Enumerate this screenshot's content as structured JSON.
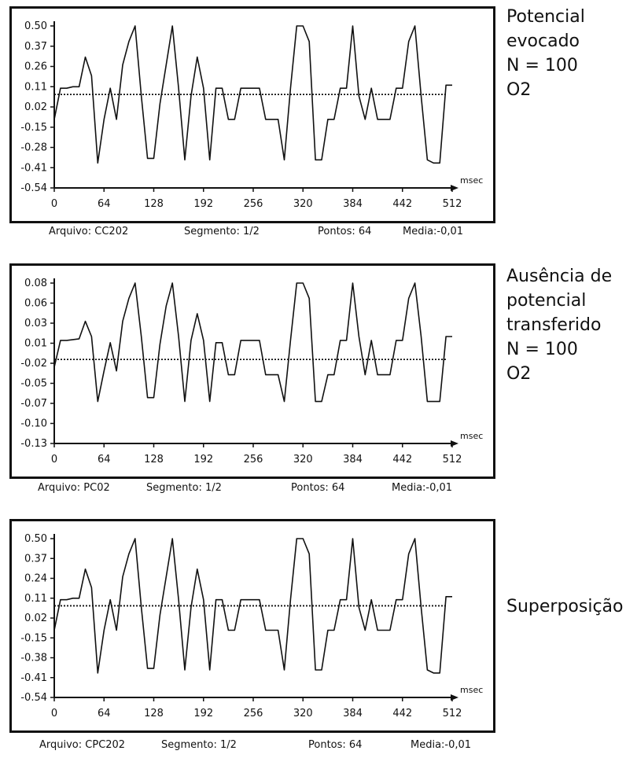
{
  "chart_data": [
    {
      "type": "line",
      "title": "Potencial evocado",
      "caption_lines": [
        "Potencial",
        "evocado",
        "N = 100",
        "O2"
      ],
      "x": [
        0,
        8,
        16,
        24,
        32,
        40,
        48,
        56,
        64,
        72,
        80,
        88,
        96,
        104,
        112,
        120,
        128,
        136,
        144,
        152,
        160,
        168,
        176,
        184,
        192,
        200,
        208,
        216,
        224,
        232,
        240,
        248,
        256,
        264,
        272,
        280,
        288,
        296,
        304,
        312,
        320,
        328,
        336,
        344,
        352,
        360,
        368,
        376,
        384,
        392,
        400,
        408,
        416,
        424,
        432,
        440,
        448,
        456,
        464,
        472,
        480,
        488,
        496,
        504,
        512
      ],
      "y_ticks": [
        "0.50",
        "0.37",
        "0.26",
        "0.11",
        "0.02",
        "-0.15",
        "-0.28",
        "-0.41",
        "-0.54"
      ],
      "x_ticks": [
        "0",
        "64",
        "128",
        "192",
        "256",
        "320",
        "384",
        "442",
        "512"
      ],
      "xunit": "msec",
      "baseline": 0.06,
      "ylim": [
        -0.54,
        0.5
      ],
      "series": [
        {
          "values": [
            -0.1,
            0.1,
            0.1,
            0.11,
            0.11,
            0.3,
            0.18,
            -0.38,
            -0.1,
            0.1,
            -0.1,
            0.25,
            0.4,
            0.5,
            0.05,
            -0.35,
            -0.35,
            0.0,
            0.25,
            0.5,
            0.1,
            -0.36,
            0.05,
            0.3,
            0.1,
            -0.36,
            0.1,
            0.1,
            -0.1,
            -0.1,
            0.1,
            0.1,
            0.1,
            0.1,
            -0.1,
            -0.1,
            -0.1,
            -0.36,
            0.1,
            0.5,
            0.5,
            0.4,
            -0.36,
            -0.36,
            -0.1,
            -0.1,
            0.1,
            0.1,
            0.5,
            0.05,
            -0.1,
            0.1,
            -0.1,
            -0.1,
            -0.1,
            0.1,
            0.1,
            0.4,
            0.5,
            0.05,
            -0.36,
            -0.38,
            -0.38,
            0.12,
            0.12
          ]
        }
      ],
      "footer": {
        "file": "Arquivo: CC202",
        "segment": "Segmento: 1/2",
        "points": "Pontos: 64",
        "mean": "Media:-0,01"
      }
    },
    {
      "type": "line",
      "title": "Ausência de potencial transferido",
      "caption_lines": [
        "Ausência de",
        "potencial",
        "transferido",
        "N = 100",
        "O2"
      ],
      "x": [
        0,
        8,
        16,
        24,
        32,
        40,
        48,
        56,
        64,
        72,
        80,
        88,
        96,
        104,
        112,
        120,
        128,
        136,
        144,
        152,
        160,
        168,
        176,
        184,
        192,
        200,
        208,
        216,
        224,
        232,
        240,
        248,
        256,
        264,
        272,
        280,
        288,
        296,
        304,
        312,
        320,
        328,
        336,
        344,
        352,
        360,
        368,
        376,
        384,
        392,
        400,
        408,
        416,
        424,
        432,
        440,
        448,
        456,
        464,
        472,
        480,
        488,
        496,
        504,
        512
      ],
      "y_ticks": [
        "0.08",
        "0.06",
        "0.03",
        "0.01",
        "-0.02",
        "-0.05",
        "-0.07",
        "-0.10",
        "-0.13"
      ],
      "x_ticks": [
        "0",
        "64",
        "128",
        "192",
        "256",
        "320",
        "384",
        "442",
        "512"
      ],
      "xunit": "msec",
      "baseline": -0.02,
      "ylim": [
        -0.13,
        0.08
      ],
      "series": [
        {
          "values": [
            -0.03,
            0.005,
            0.005,
            0.006,
            0.007,
            0.03,
            0.01,
            -0.075,
            -0.035,
            0.002,
            -0.035,
            0.03,
            0.06,
            0.08,
            0.01,
            -0.07,
            -0.07,
            0.0,
            0.05,
            0.08,
            0.01,
            -0.075,
            0.005,
            0.04,
            0.005,
            -0.075,
            0.002,
            0.002,
            -0.04,
            -0.04,
            0.005,
            0.005,
            0.005,
            0.005,
            -0.04,
            -0.04,
            -0.04,
            -0.075,
            0.005,
            0.08,
            0.08,
            0.06,
            -0.075,
            -0.075,
            -0.04,
            -0.04,
            0.005,
            0.005,
            0.08,
            0.01,
            -0.04,
            0.005,
            -0.04,
            -0.04,
            -0.04,
            0.005,
            0.005,
            0.06,
            0.08,
            0.01,
            -0.075,
            -0.075,
            -0.075,
            0.01,
            0.01
          ]
        }
      ],
      "footer": {
        "file": "Arquivo: PC02",
        "segment": "Segmento: 1/2",
        "points": "Pontos: 64",
        "mean": "Media:-0,01"
      }
    },
    {
      "type": "line",
      "title": "Superposição",
      "caption_lines": [
        "Superposição"
      ],
      "x": [
        0,
        8,
        16,
        24,
        32,
        40,
        48,
        56,
        64,
        72,
        80,
        88,
        96,
        104,
        112,
        120,
        128,
        136,
        144,
        152,
        160,
        168,
        176,
        184,
        192,
        200,
        208,
        216,
        224,
        232,
        240,
        248,
        256,
        264,
        272,
        280,
        288,
        296,
        304,
        312,
        320,
        328,
        336,
        344,
        352,
        360,
        368,
        376,
        384,
        392,
        400,
        408,
        416,
        424,
        432,
        440,
        448,
        456,
        464,
        472,
        480,
        488,
        496,
        504,
        512
      ],
      "y_ticks": [
        "0.50",
        "0.37",
        "0.24",
        "0.11",
        "0.02",
        "-0.15",
        "-0.38",
        "-0.41",
        "-0.54"
      ],
      "x_ticks": [
        "0",
        "64",
        "128",
        "192",
        "256",
        "320",
        "384",
        "442",
        "512"
      ],
      "xunit": "msec",
      "baseline": 0.06,
      "ylim": [
        -0.54,
        0.5
      ],
      "series": [
        {
          "values": [
            -0.1,
            0.1,
            0.1,
            0.11,
            0.11,
            0.3,
            0.18,
            -0.38,
            -0.1,
            0.1,
            -0.1,
            0.25,
            0.4,
            0.5,
            0.05,
            -0.35,
            -0.35,
            0.0,
            0.25,
            0.5,
            0.1,
            -0.36,
            0.05,
            0.3,
            0.1,
            -0.36,
            0.1,
            0.1,
            -0.1,
            -0.1,
            0.1,
            0.1,
            0.1,
            0.1,
            -0.1,
            -0.1,
            -0.1,
            -0.36,
            0.1,
            0.5,
            0.5,
            0.4,
            -0.36,
            -0.36,
            -0.1,
            -0.1,
            0.1,
            0.1,
            0.5,
            0.05,
            -0.1,
            0.1,
            -0.1,
            -0.1,
            -0.1,
            0.1,
            0.1,
            0.4,
            0.5,
            0.05,
            -0.36,
            -0.38,
            -0.38,
            0.12,
            0.12
          ]
        }
      ],
      "footer": {
        "file": "Arquivo: CPC202",
        "segment": "Segmento: 1/2",
        "points": "Pontos: 64",
        "mean": "Media:-0,01"
      }
    }
  ]
}
